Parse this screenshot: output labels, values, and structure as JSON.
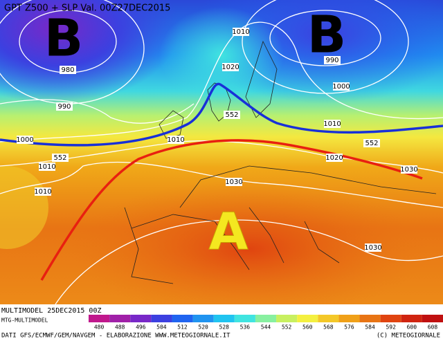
{
  "header": {
    "title": "GPT Z500 + SLP Val. 00Z27DEC2015"
  },
  "centers": [
    {
      "label": "B"
    },
    {
      "label": "B"
    },
    {
      "label": "A"
    }
  ],
  "isobar_labels": [
    "1010",
    "980",
    "990",
    "1020",
    "1000",
    "990",
    "552",
    "1010",
    "1000",
    "1010",
    "552",
    "552",
    "1010",
    "1020",
    "1030",
    "1010",
    "1030",
    "1030"
  ],
  "footer": {
    "run": "MULTIMODEL 25DEC2015 00Z",
    "model": "MTG-MULTIMODEL",
    "credits": "DATI GFS/ECMWF/GEM/NAVGEM - ELABORAZIONE WWW.METEOGIORNALE.IT",
    "copyright": "(C) METEOGIORNALE"
  },
  "legend": [
    {
      "label": "480",
      "color": "#c0188c"
    },
    {
      "label": "488",
      "color": "#a020a8"
    },
    {
      "label": "496",
      "color": "#7828c8"
    },
    {
      "label": "504",
      "color": "#3c40e0"
    },
    {
      "label": "512",
      "color": "#2064f0"
    },
    {
      "label": "520",
      "color": "#2094f0"
    },
    {
      "label": "528",
      "color": "#20c4f0"
    },
    {
      "label": "536",
      "color": "#40e4e0"
    },
    {
      "label": "544",
      "color": "#88f0a0"
    },
    {
      "label": "552",
      "color": "#c8f060"
    },
    {
      "label": "560",
      "color": "#f4f040"
    },
    {
      "label": "568",
      "color": "#f4c828"
    },
    {
      "label": "576",
      "color": "#f0a018"
    },
    {
      "label": "584",
      "color": "#e87414"
    },
    {
      "label": "592",
      "color": "#e04410"
    },
    {
      "label": "600",
      "color": "#d02410"
    },
    {
      "label": "608",
      "color": "#c01010"
    }
  ]
}
